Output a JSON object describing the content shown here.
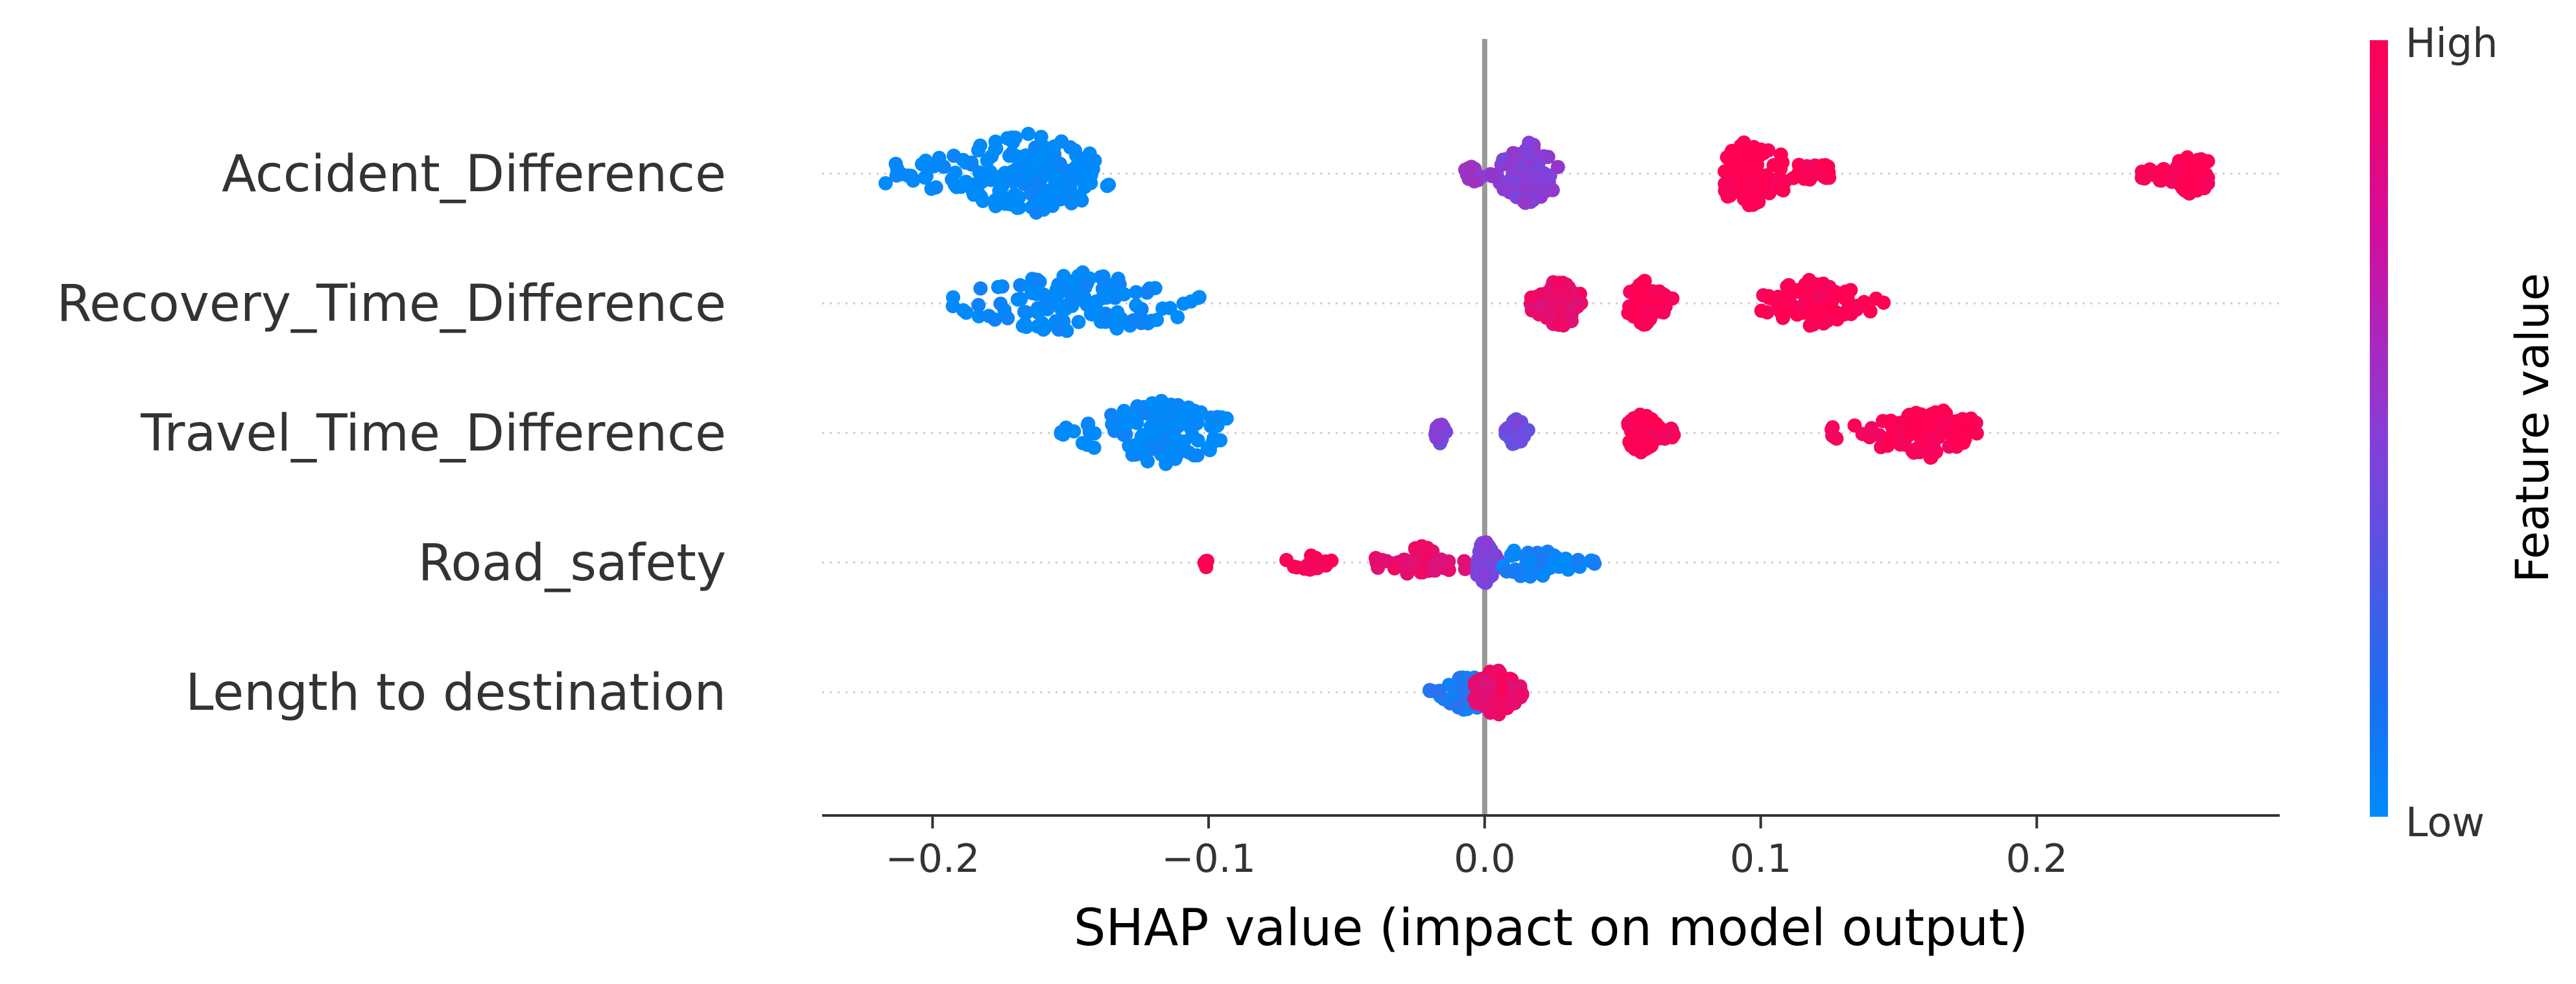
{
  "chart_data": {
    "type": "scatter",
    "subtype": "shap-beeswarm",
    "xlabel": "SHAP value (impact on model output)",
    "xlim": [
      -0.24,
      0.288
    ],
    "xticks": [
      -0.2,
      -0.1,
      0.0,
      0.1,
      0.2
    ],
    "xtick_labels": [
      "−0.2",
      "−0.1",
      "0.0",
      "0.1",
      "0.2"
    ],
    "zero_line": 0.0,
    "colorbar": {
      "title": "Feature value",
      "high_label": "High",
      "low_label": "Low",
      "low_color": "#008bfb",
      "mid_color": "#8a3cd6",
      "high_color": "#ff0052"
    },
    "features": [
      {
        "name": "Accident_Difference",
        "clusters": [
          {
            "min": -0.218,
            "max": -0.136,
            "center": -0.165,
            "feature_value": 0.0,
            "weight": 1.0
          },
          {
            "min": -0.008,
            "max": 0.003,
            "center": -0.004,
            "feature_value": 0.55,
            "weight": 0.12
          },
          {
            "min": 0.002,
            "max": 0.027,
            "center": 0.016,
            "feature_value": 0.5,
            "weight": 0.75
          },
          {
            "min": 0.087,
            "max": 0.125,
            "center": 0.096,
            "feature_value": 1.0,
            "weight": 0.8
          },
          {
            "min": 0.238,
            "max": 0.262,
            "center": 0.256,
            "feature_value": 1.0,
            "weight": 0.45
          }
        ]
      },
      {
        "name": "Recovery_Time_Difference",
        "clusters": [
          {
            "min": -0.193,
            "max": -0.103,
            "center": -0.148,
            "feature_value": 0.0,
            "weight": 0.8
          },
          {
            "min": 0.016,
            "max": 0.035,
            "center": 0.027,
            "feature_value": 0.9,
            "weight": 0.6
          },
          {
            "min": 0.052,
            "max": 0.068,
            "center": 0.058,
            "feature_value": 1.0,
            "weight": 0.5
          },
          {
            "min": 0.1,
            "max": 0.145,
            "center": 0.118,
            "feature_value": 1.0,
            "weight": 0.55
          }
        ]
      },
      {
        "name": "Travel_Time_Difference",
        "clusters": [
          {
            "min": -0.155,
            "max": -0.093,
            "center": -0.118,
            "feature_value": 0.0,
            "weight": 0.8
          },
          {
            "min": -0.018,
            "max": -0.014,
            "center": -0.016,
            "feature_value": 0.45,
            "weight": 0.2
          },
          {
            "min": 0.007,
            "max": 0.017,
            "center": 0.012,
            "feature_value": 0.4,
            "weight": 0.3
          },
          {
            "min": 0.052,
            "max": 0.069,
            "center": 0.057,
            "feature_value": 1.0,
            "weight": 0.45
          },
          {
            "min": 0.125,
            "max": 0.18,
            "center": 0.16,
            "feature_value": 1.0,
            "weight": 0.6
          }
        ]
      },
      {
        "name": "Road_safety",
        "clusters": [
          {
            "min": -0.102,
            "max": -0.1,
            "center": -0.101,
            "feature_value": 1.0,
            "weight": 0.04
          },
          {
            "min": -0.072,
            "max": -0.054,
            "center": -0.064,
            "feature_value": 1.0,
            "weight": 0.12
          },
          {
            "min": -0.04,
            "max": -0.006,
            "center": -0.022,
            "feature_value": 0.9,
            "weight": 0.35
          },
          {
            "min": -0.003,
            "max": 0.006,
            "center": 0.0,
            "feature_value": 0.45,
            "weight": 0.5
          },
          {
            "min": 0.006,
            "max": 0.04,
            "center": 0.016,
            "feature_value": 0.05,
            "weight": 0.35
          }
        ]
      },
      {
        "name": "Length to destination",
        "clusters": [
          {
            "min": -0.02,
            "max": 0.0,
            "center": -0.006,
            "feature_value": 0.1,
            "weight": 0.45
          },
          {
            "min": -0.004,
            "max": 0.014,
            "center": 0.004,
            "feature_value": 0.9,
            "weight": 0.55
          }
        ]
      }
    ]
  }
}
